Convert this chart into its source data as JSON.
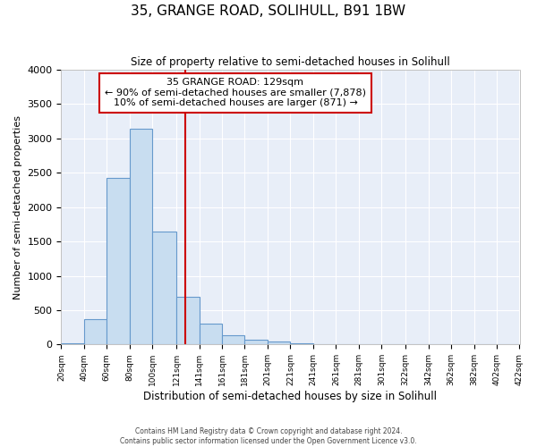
{
  "title": "35, GRANGE ROAD, SOLIHULL, B91 1BW",
  "subtitle": "Size of property relative to semi-detached houses in Solihull",
  "xlabel": "Distribution of semi-detached houses by size in Solihull",
  "ylabel": "Number of semi-detached properties",
  "bar_color": "#c8ddf0",
  "bar_edge_color": "#6699cc",
  "bin_edges": [
    20,
    40,
    60,
    80,
    100,
    121,
    141,
    161,
    181,
    201,
    221,
    241,
    261,
    281,
    301,
    322,
    342,
    362,
    382,
    402,
    422
  ],
  "values": [
    20,
    370,
    2420,
    3140,
    1640,
    700,
    300,
    135,
    65,
    45,
    20,
    5,
    2,
    0,
    0,
    0,
    0,
    0,
    0,
    0
  ],
  "property_size": 129,
  "property_label": "35 GRANGE ROAD: 129sqm",
  "pct_smaller": 90,
  "n_smaller": 7878,
  "pct_larger": 10,
  "n_larger": 871,
  "ylim": [
    0,
    4000
  ],
  "yticks": [
    0,
    500,
    1000,
    1500,
    2000,
    2500,
    3000,
    3500,
    4000
  ],
  "fig_background": "#ffffff",
  "ax_background": "#e8eef8",
  "grid_color": "#ffffff",
  "footnote": "Contains HM Land Registry data © Crown copyright and database right 2024.\nContains public sector information licensed under the Open Government Licence v3.0.",
  "vline_color": "#cc0000",
  "ann_box_color": "#ffffff",
  "ann_border_color": "#cc0000"
}
